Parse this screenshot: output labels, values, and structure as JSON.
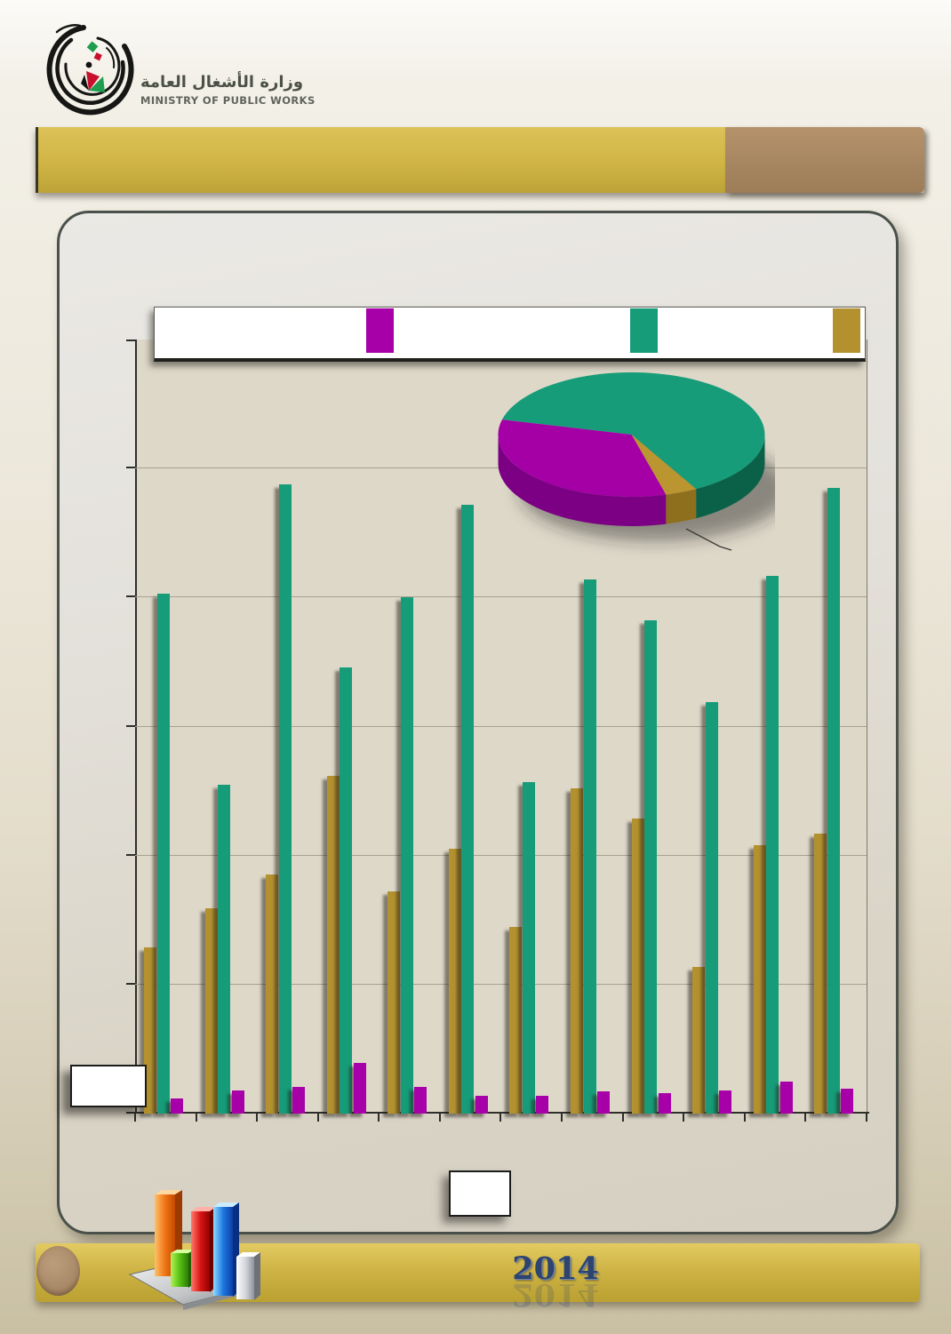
{
  "brand": {
    "name_ar": "وزارة الأشغال العامة",
    "name_en": "MINISTRY OF PUBLIC WORKS"
  },
  "legend": {
    "swatches": [
      {
        "name": "purple-swatch",
        "color": "#a800a8"
      },
      {
        "name": "teal-swatch",
        "color": "#169c79"
      },
      {
        "name": "gold-swatch",
        "color": "#b3912f"
      }
    ]
  },
  "footer": {
    "year": "2014"
  },
  "colors": {
    "plot_background": "#ded8c9",
    "header_gold": "#d0b545",
    "header_brown": "#a58561",
    "panel_background": "#e0dcd2"
  },
  "chart_data": [
    {
      "type": "bar",
      "title": "",
      "categories": [
        "",
        "",
        "",
        "",
        "",
        "",
        "",
        "",
        "",
        "",
        "",
        ""
      ],
      "series": [
        {
          "name": "gold",
          "color": "#b3912f",
          "values": [
            1.29,
            1.59,
            1.85,
            2.62,
            1.72,
            2.05,
            1.45,
            2.52,
            2.29,
            1.14,
            2.08,
            2.17
          ]
        },
        {
          "name": "teal",
          "color": "#169c79",
          "values": [
            4.03,
            2.55,
            4.88,
            3.46,
            4.0,
            4.72,
            2.57,
            4.14,
            3.82,
            3.19,
            4.17,
            4.85
          ]
        },
        {
          "name": "purple",
          "color": "#a800a8",
          "values": [
            0.12,
            0.18,
            0.21,
            0.39,
            0.21,
            0.14,
            0.14,
            0.17,
            0.16,
            0.18,
            0.25,
            0.19
          ]
        }
      ],
      "ylabel": "",
      "xlabel": "",
      "ylim": [
        0,
        6
      ],
      "y_gridline_interval": 1,
      "grid": true,
      "tick_labels_visible": false
    },
    {
      "type": "pie",
      "title": "",
      "slices": [
        {
          "name": "teal",
          "color": "#169c79",
          "percent": 63
        },
        {
          "name": "purple",
          "color": "#a500a5",
          "percent": 33
        },
        {
          "name": "gold",
          "color": "#bb952f",
          "percent": 4
        }
      ],
      "style": "3d",
      "leader_line_on_gold_slice": true
    }
  ]
}
